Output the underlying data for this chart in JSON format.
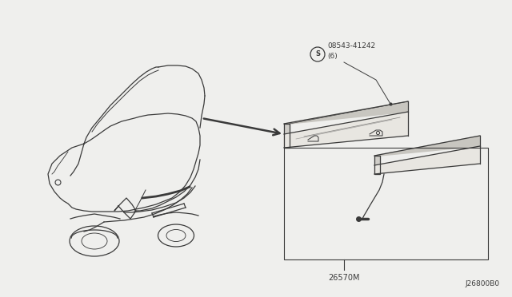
{
  "bg_color": "#efefed",
  "line_color": "#3a3a3a",
  "part_number_screw": "08543-41242\n(6)",
  "part_number_lamp": "26570M",
  "diagram_id": "J26800B0",
  "fig_width": 6.4,
  "fig_height": 3.72,
  "dpi": 100
}
